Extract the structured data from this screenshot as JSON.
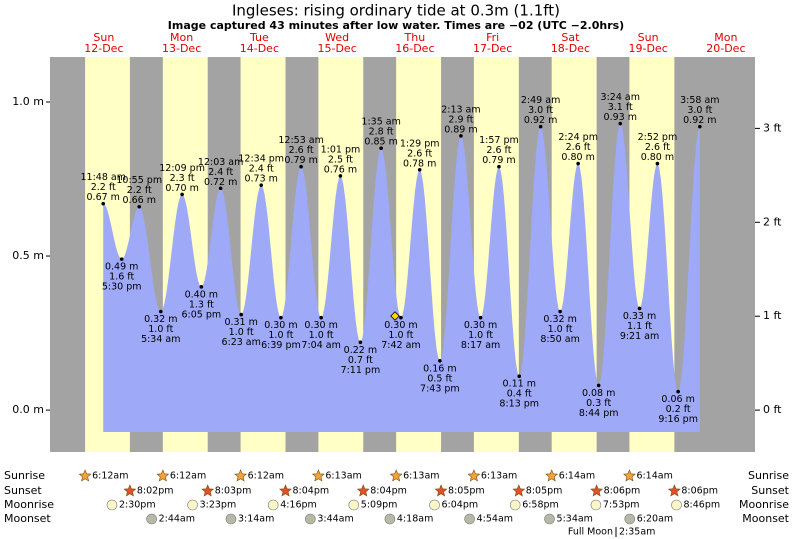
{
  "chart_data": {
    "type": "area",
    "title": "Ingleses: rising  ordinary tide at 0.3m (1.1ft)",
    "subtitle": "Image captured 43 minutes after low water. Times are −02 (UTC −2.0hrs)",
    "ylim": [
      -0.136,
      1.146
    ],
    "yticks": [
      {
        "value": 0,
        "label": "0.0 m"
      },
      {
        "value": 0.5,
        "label": "0.5 m"
      },
      {
        "value": 1,
        "label": "1.0 m"
      }
    ],
    "y2lim": [
      -0.446,
      3.76
    ],
    "y2ticks": [
      {
        "value": 0,
        "label": "0 ft"
      },
      {
        "value": 1,
        "label": "1 ft"
      },
      {
        "value": 2,
        "label": "2 ft"
      },
      {
        "value": 3,
        "label": "3 ft"
      }
    ],
    "color": "#9ea9f7",
    "row_labels": {
      "sunrise": "Sunrise",
      "sunset": "Sunset",
      "moonrise": "Moonrise",
      "moonset": "Moonset"
    },
    "full_moon": {
      "label": "Full Moon",
      "time": "2:35am"
    },
    "days": [
      {
        "name": "Sun",
        "date": "12-Dec",
        "sunrise": "6:12am",
        "sunset": "8:02pm",
        "moonrise": "2:30pm",
        "moonset": null,
        "tides": [
          {
            "time": "11:48 am",
            "ft": "2.2 ft",
            "m": {
              "value": 0.67,
              "label": "0.67 m"
            }
          },
          {
            "time": "5:30 pm",
            "ft": "1.6 ft",
            "m": {
              "value": 0.49,
              "label": "0.49 m"
            }
          },
          {
            "time": "10:55 pm",
            "ft": "2.2 ft",
            "m": {
              "value": 0.66,
              "label": "0.66 m"
            }
          }
        ]
      },
      {
        "name": "Mon",
        "date": "13-Dec",
        "sunrise": "6:12am",
        "sunset": "8:03pm",
        "moonrise": "3:23pm",
        "moonset": "2:44am",
        "tides": [
          {
            "time": "5:34 am",
            "ft": "1.0 ft",
            "m": {
              "value": 0.32,
              "label": "0.32 m"
            }
          },
          {
            "time": "12:09 pm",
            "ft": "2.3 ft",
            "m": {
              "value": 0.7,
              "label": "0.70 m"
            }
          },
          {
            "time": "6:05 pm",
            "ft": "1.3 ft",
            "m": {
              "value": 0.4,
              "label": "0.40 m"
            }
          }
        ]
      },
      {
        "name": "Tue",
        "date": "14-Dec",
        "sunrise": "6:12am",
        "sunset": "8:04pm",
        "moonrise": "4:16pm",
        "moonset": "3:14am",
        "tides": [
          {
            "time": "12:03 am",
            "ft": "2.4 ft",
            "m": {
              "value": 0.72,
              "label": "0.72 m"
            }
          },
          {
            "time": "6:23 am",
            "ft": "1.0 ft",
            "m": {
              "value": 0.31,
              "label": "0.31 m"
            }
          },
          {
            "time": "12:34 pm",
            "ft": "2.4 ft",
            "m": {
              "value": 0.73,
              "label": "0.73 m"
            }
          },
          {
            "time": "6:39 pm",
            "ft": "1.0 ft",
            "m": {
              "value": 0.3,
              "label": "0.30 m"
            }
          }
        ]
      },
      {
        "name": "Wed",
        "date": "15-Dec",
        "sunrise": "6:13am",
        "sunset": "8:04pm",
        "moonrise": "5:09pm",
        "moonset": "3:44am",
        "tides": [
          {
            "time": "12:53 am",
            "ft": "2.6 ft",
            "m": {
              "value": 0.79,
              "label": "0.79 m"
            }
          },
          {
            "time": "7:04 am",
            "ft": "1.0 ft",
            "m": {
              "value": 0.3,
              "label": "0.30 m"
            }
          },
          {
            "time": "1:01 pm",
            "ft": "2.5 ft",
            "m": {
              "value": 0.76,
              "label": "0.76 m"
            }
          },
          {
            "time": "7:11 pm",
            "ft": "0.7 ft",
            "m": {
              "value": 0.22,
              "label": "0.22 m"
            }
          }
        ]
      },
      {
        "name": "Thu",
        "date": "16-Dec",
        "sunrise": "6:13am",
        "sunset": "8:05pm",
        "moonrise": "6:04pm",
        "moonset": "4:18am",
        "tides": [
          {
            "time": "1:35 am",
            "ft": "2.8 ft",
            "m": {
              "value": 0.85,
              "label": "0.85 m"
            }
          },
          {
            "time": "7:42 am",
            "ft": "1.0 ft",
            "m": {
              "value": 0.3,
              "label": "0.30 m"
            }
          },
          {
            "time": "1:29 pm",
            "ft": "2.6 ft",
            "m": {
              "value": 0.78,
              "label": "0.78 m"
            }
          },
          {
            "time": "7:43 pm",
            "ft": "0.5 ft",
            "m": {
              "value": 0.16,
              "label": "0.16 m"
            }
          }
        ]
      },
      {
        "name": "Fri",
        "date": "17-Dec",
        "sunrise": "6:13am",
        "sunset": "8:05pm",
        "moonrise": "6:58pm",
        "moonset": "4:54am",
        "tides": [
          {
            "time": "2:13 am",
            "ft": "2.9 ft",
            "m": {
              "value": 0.89,
              "label": "0.89 m"
            }
          },
          {
            "time": "8:17 am",
            "ft": "1.0 ft",
            "m": {
              "value": 0.3,
              "label": "0.30 m"
            }
          },
          {
            "time": "1:57 pm",
            "ft": "2.6 ft",
            "m": {
              "value": 0.79,
              "label": "0.79 m"
            }
          },
          {
            "time": "8:13 pm",
            "ft": "0.4 ft",
            "m": {
              "value": 0.11,
              "label": "0.11 m"
            }
          }
        ]
      },
      {
        "name": "Sat",
        "date": "18-Dec",
        "sunrise": "6:14am",
        "sunset": "8:06pm",
        "moonrise": "7:53pm",
        "moonset": "5:34am",
        "tides": [
          {
            "time": "2:49 am",
            "ft": "3.0 ft",
            "m": {
              "value": 0.92,
              "label": "0.92 m"
            }
          },
          {
            "time": "8:50 am",
            "ft": "1.0 ft",
            "m": {
              "value": 0.32,
              "label": "0.32 m"
            }
          },
          {
            "time": "2:24 pm",
            "ft": "2.6 ft",
            "m": {
              "value": 0.8,
              "label": "0.80 m"
            }
          },
          {
            "time": "8:44 pm",
            "ft": "0.3 ft",
            "m": {
              "value": 0.08,
              "label": "0.08 m"
            }
          }
        ]
      },
      {
        "name": "Sun",
        "date": "19-Dec",
        "sunrise": "6:14am",
        "sunset": "8:06pm",
        "moonrise": "8:46pm",
        "moonset": "6:20am",
        "tides": [
          {
            "time": "3:24 am",
            "ft": "3.1 ft",
            "m": {
              "value": 0.93,
              "label": "0.93 m"
            }
          },
          {
            "time": "9:21 am",
            "ft": "1.1 ft",
            "m": {
              "value": 0.33,
              "label": "0.33 m"
            }
          },
          {
            "time": "2:52 pm",
            "ft": "2.6 ft",
            "m": {
              "value": 0.8,
              "label": "0.80 m"
            }
          },
          {
            "time": "9:16 pm",
            "ft": "0.2 ft",
            "m": {
              "value": 0.06,
              "label": "0.06 m"
            }
          }
        ]
      },
      {
        "name": "Mon",
        "date": "20-Dec",
        "sunrise": null,
        "sunset": null,
        "moonrise": null,
        "moonset": null,
        "tides": [
          {
            "time": "3:58 am",
            "ft": "3.0 ft",
            "m": {
              "value": 0.92,
              "label": "0.92 m"
            }
          }
        ]
      }
    ]
  }
}
